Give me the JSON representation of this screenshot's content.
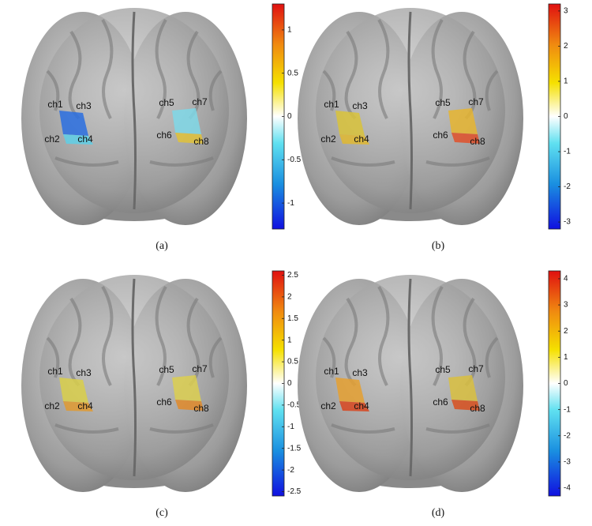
{
  "panels": [
    {
      "caption": "(a)",
      "channels": [
        "ch1",
        "ch2",
        "ch3",
        "ch4",
        "ch5",
        "ch6",
        "ch7",
        "ch8"
      ],
      "colors": [
        "#2a6ee0",
        "#5ecfe6",
        "#7fd8e8",
        "#e0c23a"
      ],
      "colorbar": {
        "lim": [
          -1.3,
          1.3
        ],
        "ticks": [
          -1,
          -0.5,
          0,
          0.5,
          1
        ]
      }
    },
    {
      "caption": "(b)",
      "channels": [
        "ch1",
        "ch2",
        "ch3",
        "ch4",
        "ch5",
        "ch6",
        "ch7",
        "ch8"
      ],
      "colors": [
        "#d9c33a",
        "#e0b830",
        "#e6b530",
        "#e0502a"
      ],
      "colorbar": {
        "lim": [
          -3.2,
          3.2
        ],
        "ticks": [
          -3,
          -2,
          -1,
          0,
          1,
          2,
          3
        ]
      }
    },
    {
      "caption": "(c)",
      "channels": [
        "ch1",
        "ch2",
        "ch3",
        "ch4",
        "ch5",
        "ch6",
        "ch7",
        "ch8"
      ],
      "colors": [
        "#d9cf4a",
        "#e09a30",
        "#dccf50",
        "#e08a2a"
      ],
      "colorbar": {
        "lim": [
          -2.6,
          2.6
        ],
        "ticks": [
          -2.5,
          -2,
          -1.5,
          -1,
          -0.5,
          0,
          0.5,
          1,
          1.5,
          2,
          2.5
        ]
      }
    },
    {
      "caption": "(d)",
      "channels": [
        "ch1",
        "ch2",
        "ch3",
        "ch4",
        "ch5",
        "ch6",
        "ch7",
        "ch8"
      ],
      "colors": [
        "#e5a030",
        "#d8451e",
        "#d9c040",
        "#d8501e"
      ],
      "colorbar": {
        "lim": [
          -4.3,
          4.3
        ],
        "ticks": [
          -4,
          -3,
          -2,
          -1,
          0,
          1,
          2,
          3,
          4
        ]
      }
    }
  ]
}
